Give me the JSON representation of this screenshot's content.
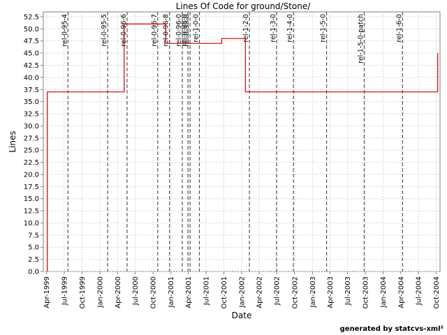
{
  "chart_data": {
    "type": "line",
    "title": "Lines Of Code for ground/Stone/",
    "xlabel": "Date",
    "ylabel": "Lines",
    "footer": "generated by statcvs-xml²",
    "xlim": [
      "1999-03-15",
      "2004-10-20"
    ],
    "ylim": [
      0,
      53.5
    ],
    "y_ticks": [
      0.0,
      2.5,
      5.0,
      7.5,
      10.0,
      12.5,
      15.0,
      17.5,
      20.0,
      22.5,
      25.0,
      27.5,
      30.0,
      32.5,
      35.0,
      37.5,
      40.0,
      42.5,
      45.0,
      47.5,
      50.0,
      52.5
    ],
    "x_ticks": [
      {
        "label": "Apr-1999",
        "date": "1999-04-01"
      },
      {
        "label": "Jul-1999",
        "date": "1999-07-01"
      },
      {
        "label": "Oct-1999",
        "date": "1999-10-01"
      },
      {
        "label": "Jan-2000",
        "date": "2000-01-01"
      },
      {
        "label": "Apr-2000",
        "date": "2000-04-01"
      },
      {
        "label": "Jul-2000",
        "date": "2000-07-01"
      },
      {
        "label": "Oct-2000",
        "date": "2000-10-01"
      },
      {
        "label": "Jan-2001",
        "date": "2001-01-01"
      },
      {
        "label": "Apr-2001",
        "date": "2001-04-01"
      },
      {
        "label": "Jul-2001",
        "date": "2001-07-01"
      },
      {
        "label": "Oct-2001",
        "date": "2001-10-01"
      },
      {
        "label": "Jan-2002",
        "date": "2002-01-01"
      },
      {
        "label": "Apr-2002",
        "date": "2002-04-01"
      },
      {
        "label": "Jul-2002",
        "date": "2002-07-01"
      },
      {
        "label": "Oct-2002",
        "date": "2002-10-01"
      },
      {
        "label": "Jan-2003",
        "date": "2003-01-01"
      },
      {
        "label": "Apr-2003",
        "date": "2003-04-01"
      },
      {
        "label": "Jul-2003",
        "date": "2003-07-01"
      },
      {
        "label": "Oct-2003",
        "date": "2003-10-01"
      },
      {
        "label": "Jan-2004",
        "date": "2004-01-01"
      },
      {
        "label": "Apr-2004",
        "date": "2004-04-01"
      },
      {
        "label": "Jul-2004",
        "date": "2004-07-01"
      },
      {
        "label": "Oct-2004",
        "date": "2004-10-01"
      }
    ],
    "series": [
      {
        "color": "#cc0000",
        "step": true,
        "points": [
          {
            "date": "1999-04-05",
            "y": 0
          },
          {
            "date": "1999-04-05",
            "y": 37
          },
          {
            "date": "2000-05-05",
            "y": 37
          },
          {
            "date": "2000-05-05",
            "y": 51
          },
          {
            "date": "2000-12-05",
            "y": 51
          },
          {
            "date": "2000-12-05",
            "y": 47
          },
          {
            "date": "2001-09-20",
            "y": 47
          },
          {
            "date": "2001-09-20",
            "y": 48
          },
          {
            "date": "2002-01-20",
            "y": 48
          },
          {
            "date": "2002-01-20",
            "y": 37
          },
          {
            "date": "2004-10-08",
            "y": 37
          },
          {
            "date": "2004-10-08",
            "y": 45
          }
        ]
      }
    ],
    "markers": [
      {
        "label": "rel-0-95-4",
        "date": "1999-07-20"
      },
      {
        "label": "rel-0-95-5",
        "date": "2000-02-10"
      },
      {
        "label": "rel-0-96-6",
        "date": "2000-05-20"
      },
      {
        "label": "rel-0-96-7",
        "date": "2000-10-25"
      },
      {
        "label": "rel-0-96-8",
        "date": "2000-12-25"
      },
      {
        "label": "rel-0-96-0",
        "date": "2001-03-01"
      },
      {
        "label": "rel-0-98-0",
        "date": "2001-03-30"
      },
      {
        "label": "rel-0-99-0",
        "date": "2001-04-10"
      },
      {
        "label": "rel-1-0-0",
        "date": "2001-05-28"
      },
      {
        "label": "rel-1-2-0",
        "date": "2002-02-10"
      },
      {
        "label": "rel-1-3-0",
        "date": "2002-06-30"
      },
      {
        "label": "rel-1-4-0",
        "date": "2002-09-25"
      },
      {
        "label": "rel-1-5-0",
        "date": "2003-03-15"
      },
      {
        "label": "rel-1-5-0-patch",
        "date": "2003-09-25"
      },
      {
        "label": "rel-1-6-0",
        "date": "2004-04-10"
      }
    ],
    "grid": true,
    "legend": "none"
  }
}
